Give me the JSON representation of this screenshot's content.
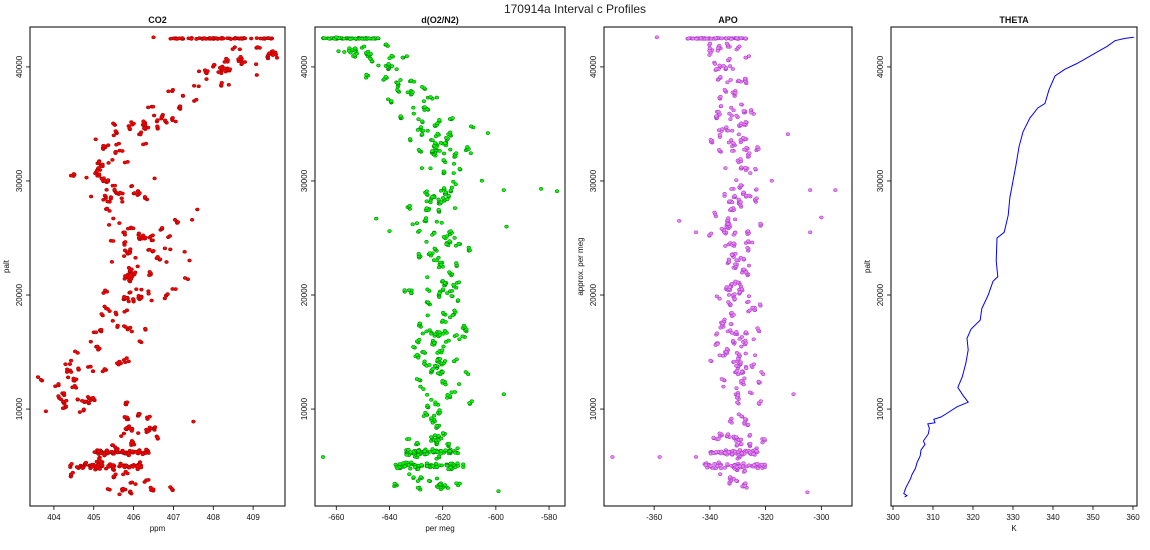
{
  "figure": {
    "title": "170914a   Interval c Profiles"
  },
  "chart_data": [
    {
      "type": "scatter",
      "id": "co2",
      "color": "#ff0000",
      "edge": "#8b0000",
      "title": "CO2",
      "xlabel": "ppm",
      "ylabel": "palt",
      "xlim": [
        403.4,
        409.8
      ],
      "ylim": [
        1500,
        43500
      ],
      "xticks": [
        404,
        405,
        406,
        407,
        408,
        409
      ],
      "xtick_labels": [
        "404",
        "405",
        "406",
        "407",
        "408",
        "409"
      ],
      "yticks": [
        10000,
        20000,
        30000,
        40000
      ],
      "ytick_labels": [
        "10000",
        "20000",
        "30000",
        "40000"
      ],
      "profile": [
        [
          406.0,
          2500
        ],
        [
          405.9,
          3500
        ],
        [
          405.2,
          4800
        ],
        [
          405.4,
          6000
        ],
        [
          406.2,
          7500
        ],
        [
          406.0,
          9000
        ],
        [
          404.9,
          10000
        ],
        [
          404.6,
          11500
        ],
        [
          404.4,
          12500
        ],
        [
          404.9,
          14000
        ],
        [
          405.2,
          15500
        ],
        [
          405.5,
          17000
        ],
        [
          405.7,
          18500
        ],
        [
          406.0,
          20000
        ],
        [
          406.3,
          21500
        ],
        [
          406.5,
          23000
        ],
        [
          406.5,
          24500
        ],
        [
          406.3,
          26000
        ],
        [
          406.0,
          27500
        ],
        [
          405.7,
          29000
        ],
        [
          405.2,
          30500
        ],
        [
          405.6,
          32000
        ],
        [
          405.8,
          33500
        ],
        [
          406.3,
          35000
        ],
        [
          407.0,
          36500
        ],
        [
          407.6,
          38000
        ],
        [
          408.4,
          39500
        ],
        [
          409.0,
          41000
        ],
        [
          409.2,
          42000
        ]
      ],
      "spread": 0.45,
      "top_band": {
        "y": 42500,
        "x": [
          406.9,
          409.5
        ]
      },
      "dense_rows": [
        {
          "y": 5000,
          "x": [
            404.7,
            406.2
          ]
        },
        {
          "y": 6200,
          "x": [
            405.0,
            406.4
          ]
        }
      ],
      "outliers": [
        [
          403.8,
          9800
        ],
        [
          403.6,
          12800
        ],
        [
          407.5,
          8900
        ],
        [
          409.6,
          40800
        ],
        [
          407.6,
          27500
        ],
        [
          406.5,
          42600
        ]
      ]
    },
    {
      "type": "scatter",
      "id": "o2n2",
      "color": "#00ff00",
      "edge": "#006400",
      "title": "d(O2/N2)",
      "xlabel": "per meg",
      "ylabel": "",
      "xlim": [
        -668,
        -574
      ],
      "ylim": [
        1500,
        43500
      ],
      "xticks": [
        -660,
        -640,
        -620,
        -600,
        -580
      ],
      "xtick_labels": [
        "-660",
        "-640",
        "-620",
        "-600",
        "-580"
      ],
      "yticks": [
        10000,
        20000,
        30000,
        40000
      ],
      "ytick_labels": [
        "10000",
        "20000",
        "30000",
        "40000"
      ],
      "profile": [
        [
          -624,
          2500
        ],
        [
          -626,
          4000
        ],
        [
          -622,
          5500
        ],
        [
          -624,
          7000
        ],
        [
          -620,
          8500
        ],
        [
          -617,
          10000
        ],
        [
          -617,
          11500
        ],
        [
          -620,
          13000
        ],
        [
          -619,
          14500
        ],
        [
          -620,
          16000
        ],
        [
          -620,
          17500
        ],
        [
          -620,
          19000
        ],
        [
          -622,
          20500
        ],
        [
          -620,
          22000
        ],
        [
          -622,
          23500
        ],
        [
          -622,
          25000
        ],
        [
          -623,
          26500
        ],
        [
          -622,
          28000
        ],
        [
          -616,
          29500
        ],
        [
          -618,
          31000
        ],
        [
          -620,
          32500
        ],
        [
          -623,
          34000
        ],
        [
          -627,
          35500
        ],
        [
          -632,
          37000
        ],
        [
          -636,
          38500
        ],
        [
          -643,
          40000
        ],
        [
          -652,
          41500
        ],
        [
          -654,
          42200
        ]
      ],
      "spread": 6,
      "top_band": {
        "y": 42500,
        "x": [
          -665,
          -644
        ]
      },
      "dense_rows": [
        {
          "y": 5000,
          "x": [
            -638,
            -612
          ]
        },
        {
          "y": 6200,
          "x": [
            -634,
            -614
          ]
        }
      ],
      "outliers": [
        [
          -665,
          5800
        ],
        [
          -637,
          4800
        ],
        [
          -583,
          29300
        ],
        [
          -577,
          29100
        ],
        [
          -597,
          29200
        ],
        [
          -596,
          26000
        ],
        [
          -603,
          34200
        ],
        [
          -597,
          11300
        ],
        [
          -640,
          25600
        ],
        [
          -645,
          26700
        ],
        [
          -599,
          2800
        ],
        [
          -660,
          42600
        ]
      ]
    },
    {
      "type": "scatter",
      "id": "apo",
      "color": "#ee82ee",
      "edge": "#9932cc",
      "title": "APO",
      "xlabel": "",
      "ylabel": "approx. per meg",
      "xlim": [
        -378,
        -289
      ],
      "ylim": [
        1500,
        43500
      ],
      "xticks": [
        -360,
        -340,
        -320,
        -300
      ],
      "xtick_labels": [
        "-360",
        "-340",
        "-320",
        "-300"
      ],
      "yticks": [
        10000,
        20000,
        30000,
        40000
      ],
      "ytick_labels": [
        "10000",
        "20000",
        "30000",
        "40000"
      ],
      "profile": [
        [
          -330,
          2500
        ],
        [
          -331,
          4000
        ],
        [
          -330,
          5500
        ],
        [
          -330,
          7000
        ],
        [
          -329,
          8500
        ],
        [
          -328,
          10000
        ],
        [
          -327,
          11500
        ],
        [
          -328,
          13000
        ],
        [
          -328,
          14500
        ],
        [
          -329,
          16000
        ],
        [
          -329,
          17500
        ],
        [
          -329,
          19000
        ],
        [
          -330,
          20500
        ],
        [
          -329,
          22000
        ],
        [
          -329,
          23500
        ],
        [
          -330,
          25000
        ],
        [
          -331,
          26500
        ],
        [
          -330,
          28000
        ],
        [
          -326,
          29500
        ],
        [
          -327,
          31000
        ],
        [
          -330,
          32500
        ],
        [
          -331,
          34000
        ],
        [
          -331,
          35500
        ],
        [
          -332,
          37000
        ],
        [
          -333,
          38500
        ],
        [
          -336,
          40000
        ],
        [
          -337,
          41500
        ],
        [
          -338,
          42200
        ]
      ],
      "spread": 4.5,
      "top_band": {
        "y": 42500,
        "x": [
          -348,
          -327
        ]
      },
      "dense_rows": [
        {
          "y": 5000,
          "x": [
            -342,
            -320
          ]
        },
        {
          "y": 6200,
          "x": [
            -340,
            -322
          ]
        }
      ],
      "outliers": [
        [
          -375,
          5800
        ],
        [
          -358,
          5800
        ],
        [
          -345,
          5800
        ],
        [
          -295,
          29200
        ],
        [
          -304,
          29200
        ],
        [
          -312,
          34100
        ],
        [
          -304,
          25500
        ],
        [
          -300,
          26800
        ],
        [
          -345,
          25500
        ],
        [
          -351,
          26500
        ],
        [
          -305,
          2700
        ],
        [
          -310,
          11300
        ],
        [
          -359,
          42600
        ]
      ]
    },
    {
      "type": "line",
      "id": "theta",
      "color": "#0000ff",
      "title": "THETA",
      "xlabel": "K",
      "ylabel": "palt",
      "xlim": [
        299.5,
        361
      ],
      "ylim": [
        1500,
        43500
      ],
      "xticks": [
        300,
        310,
        320,
        330,
        340,
        350,
        360
      ],
      "xtick_labels": [
        "300",
        "310",
        "320",
        "330",
        "340",
        "350",
        "360"
      ],
      "yticks": [
        10000,
        20000,
        30000,
        40000
      ],
      "ytick_labels": [
        "10000",
        "20000",
        "30000",
        "40000"
      ],
      "points": [
        [
          302.9,
          2300
        ],
        [
          303.5,
          2400
        ],
        [
          302.7,
          2600
        ],
        [
          303.2,
          3100
        ],
        [
          303.8,
          3500
        ],
        [
          304.4,
          3900
        ],
        [
          304.8,
          4300
        ],
        [
          305.6,
          4800
        ],
        [
          306.0,
          5300
        ],
        [
          306.8,
          5900
        ],
        [
          307.0,
          6400
        ],
        [
          308.0,
          6900
        ],
        [
          307.6,
          7200
        ],
        [
          308.8,
          7800
        ],
        [
          309.1,
          8300
        ],
        [
          308.7,
          8700
        ],
        [
          310.5,
          8800
        ],
        [
          310.2,
          9100
        ],
        [
          312.0,
          9300
        ],
        [
          313.8,
          9700
        ],
        [
          316.0,
          10200
        ],
        [
          318.8,
          10600
        ],
        [
          317.5,
          11200
        ],
        [
          316.2,
          11900
        ],
        [
          317.3,
          12800
        ],
        [
          318.2,
          14000
        ],
        [
          318.8,
          15200
        ],
        [
          318.5,
          16200
        ],
        [
          319.5,
          17000
        ],
        [
          321.8,
          17800
        ],
        [
          322.2,
          18800
        ],
        [
          323.8,
          20000
        ],
        [
          325.0,
          21200
        ],
        [
          326.2,
          21600
        ],
        [
          325.8,
          23000
        ],
        [
          326.0,
          25000
        ],
        [
          327.8,
          25500
        ],
        [
          328.8,
          27000
        ],
        [
          329.2,
          28500
        ],
        [
          330.0,
          30000
        ],
        [
          330.8,
          31500
        ],
        [
          331.5,
          33000
        ],
        [
          332.5,
          34300
        ],
        [
          334.2,
          35500
        ],
        [
          336.2,
          36400
        ],
        [
          338.0,
          36800
        ],
        [
          339.0,
          38000
        ],
        [
          340.5,
          39200
        ],
        [
          343.0,
          39800
        ],
        [
          346.0,
          40300
        ],
        [
          349.0,
          40900
        ],
        [
          351.0,
          41300
        ],
        [
          353.5,
          41800
        ],
        [
          355.5,
          42300
        ],
        [
          358.0,
          42500
        ],
        [
          360.2,
          42600
        ]
      ]
    }
  ]
}
